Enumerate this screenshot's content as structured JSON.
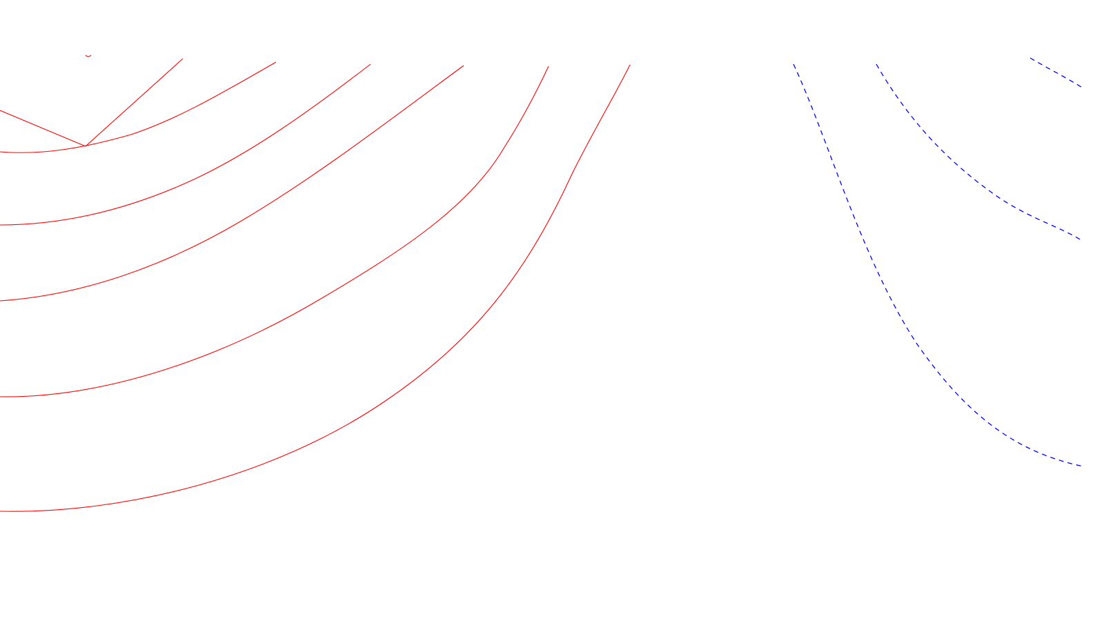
{
  "diagram": {
    "background": "#ffffff",
    "solid_color": "#ff0000",
    "dashed_color": "#0000ff",
    "solid_curve_count": 6,
    "dashed_curve_count": 3,
    "has_text": false
  }
}
